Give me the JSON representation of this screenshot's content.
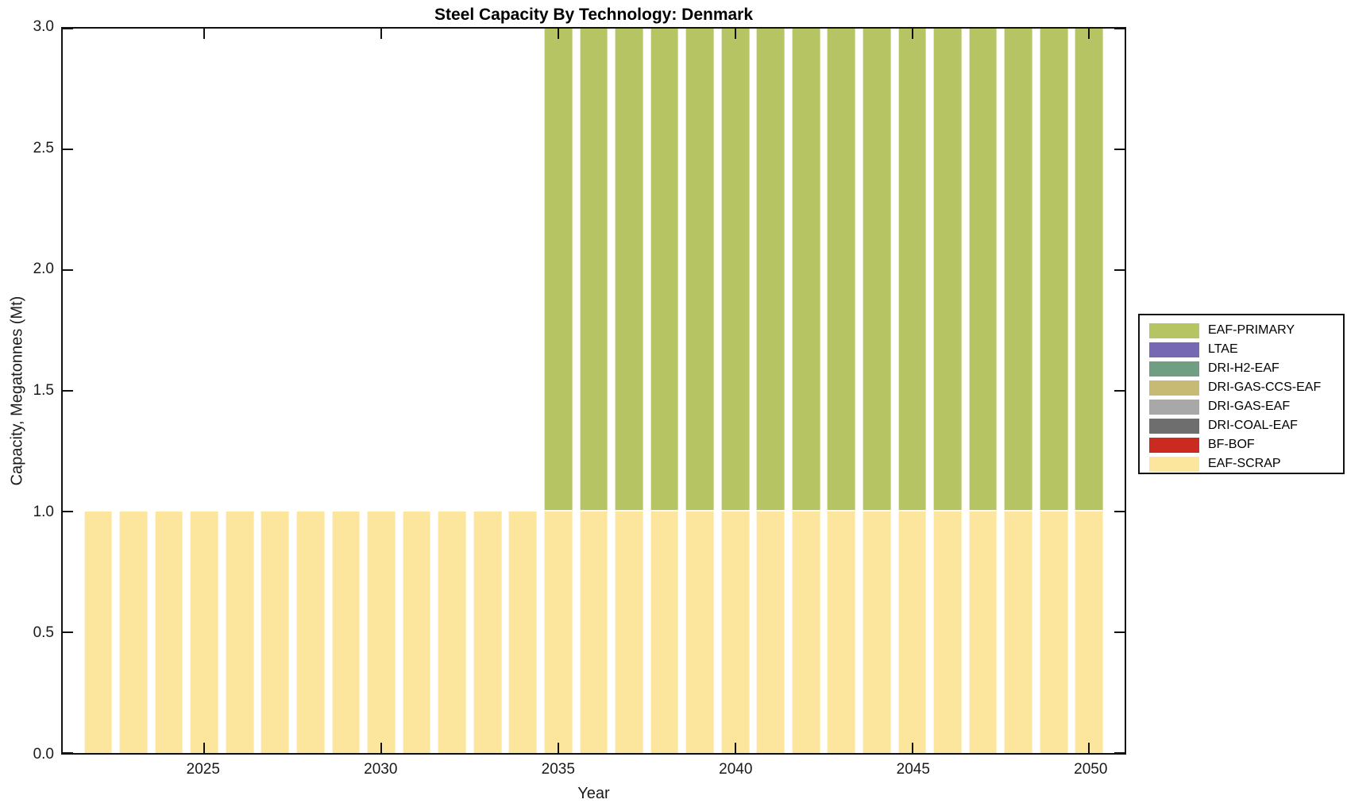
{
  "title": "Steel Capacity By Technology: Denmark",
  "axes": {
    "xlabel": "Year",
    "ylabel": "Capacity, Megatonnes (Mt)",
    "x_tick_values": [
      2025,
      2030,
      2035,
      2040,
      2045,
      2050
    ],
    "x_tick_labels": [
      "2025",
      "2030",
      "2035",
      "2040",
      "2045",
      "2050"
    ],
    "y_tick_values": [
      0,
      0.5,
      1,
      1.5,
      2,
      2.5,
      3
    ],
    "y_tick_labels": [
      "0.0",
      "0.5",
      "1.0",
      "1.5",
      "2.0",
      "2.5",
      "3.0"
    ]
  },
  "legend": {
    "position": "right-outside",
    "items": [
      {
        "label": "EAF-PRIMARY",
        "color": "#b6c464"
      },
      {
        "label": "LTAE",
        "color": "#7668b2"
      },
      {
        "label": "DRI-H2-EAF",
        "color": "#6f9e83"
      },
      {
        "label": "DRI-GAS-CCS-EAF",
        "color": "#c6ba74"
      },
      {
        "label": "DRI-GAS-EAF",
        "color": "#a8a8a8"
      },
      {
        "label": "DRI-COAL-EAF",
        "color": "#6e6e6e"
      },
      {
        "label": "BF-BOF",
        "color": "#cb2a20"
      },
      {
        "label": "EAF-SCRAP",
        "color": "#fce59c"
      }
    ]
  },
  "chart_data": {
    "type": "bar",
    "stacked": true,
    "title": "Steel Capacity By Technology: Denmark",
    "xlabel": "Year",
    "ylabel": "Capacity, Megatonnes (Mt)",
    "xlim": [
      2021,
      2051
    ],
    "ylim": [
      0,
      3
    ],
    "grid": false,
    "bar_width_fraction": 0.78,
    "x": [
      2022,
      2023,
      2024,
      2025,
      2026,
      2027,
      2028,
      2029,
      2030,
      2031,
      2032,
      2033,
      2034,
      2035,
      2036,
      2037,
      2038,
      2039,
      2040,
      2041,
      2042,
      2043,
      2044,
      2045,
      2046,
      2047,
      2048,
      2049,
      2050
    ],
    "series": [
      {
        "name": "EAF-SCRAP",
        "values": [
          1,
          1,
          1,
          1,
          1,
          1,
          1,
          1,
          1,
          1,
          1,
          1,
          1,
          1,
          1,
          1,
          1,
          1,
          1,
          1,
          1,
          1,
          1,
          1,
          1,
          1,
          1,
          1,
          1
        ]
      },
      {
        "name": "BF-BOF",
        "values": [
          0,
          0,
          0,
          0,
          0,
          0,
          0,
          0,
          0,
          0,
          0,
          0,
          0,
          0,
          0,
          0,
          0,
          0,
          0,
          0,
          0,
          0,
          0,
          0,
          0,
          0,
          0,
          0,
          0
        ]
      },
      {
        "name": "DRI-COAL-EAF",
        "values": [
          0,
          0,
          0,
          0,
          0,
          0,
          0,
          0,
          0,
          0,
          0,
          0,
          0,
          0,
          0,
          0,
          0,
          0,
          0,
          0,
          0,
          0,
          0,
          0,
          0,
          0,
          0,
          0,
          0
        ]
      },
      {
        "name": "DRI-GAS-EAF",
        "values": [
          0,
          0,
          0,
          0,
          0,
          0,
          0,
          0,
          0,
          0,
          0,
          0,
          0,
          0,
          0,
          0,
          0,
          0,
          0,
          0,
          0,
          0,
          0,
          0,
          0,
          0,
          0,
          0,
          0
        ]
      },
      {
        "name": "DRI-GAS-CCS-EAF",
        "values": [
          0,
          0,
          0,
          0,
          0,
          0,
          0,
          0,
          0,
          0,
          0,
          0,
          0,
          0,
          0,
          0,
          0,
          0,
          0,
          0,
          0,
          0,
          0,
          0,
          0,
          0,
          0,
          0,
          0
        ]
      },
      {
        "name": "DRI-H2-EAF",
        "values": [
          0,
          0,
          0,
          0,
          0,
          0,
          0,
          0,
          0,
          0,
          0,
          0,
          0,
          0,
          0,
          0,
          0,
          0,
          0,
          0,
          0,
          0,
          0,
          0,
          0,
          0,
          0,
          0,
          0
        ]
      },
      {
        "name": "LTAE",
        "values": [
          0,
          0,
          0,
          0,
          0,
          0,
          0,
          0,
          0,
          0,
          0,
          0,
          0,
          0,
          0,
          0,
          0,
          0,
          0,
          0,
          0,
          0,
          0,
          0,
          0,
          0,
          0,
          0,
          0
        ]
      },
      {
        "name": "EAF-PRIMARY",
        "values": [
          0,
          0,
          0,
          0,
          0,
          0,
          0,
          0,
          0,
          0,
          0,
          0,
          0,
          2,
          2,
          2,
          2,
          2,
          2,
          2,
          2,
          2,
          2,
          2,
          2,
          2,
          2,
          2,
          2
        ]
      }
    ]
  }
}
